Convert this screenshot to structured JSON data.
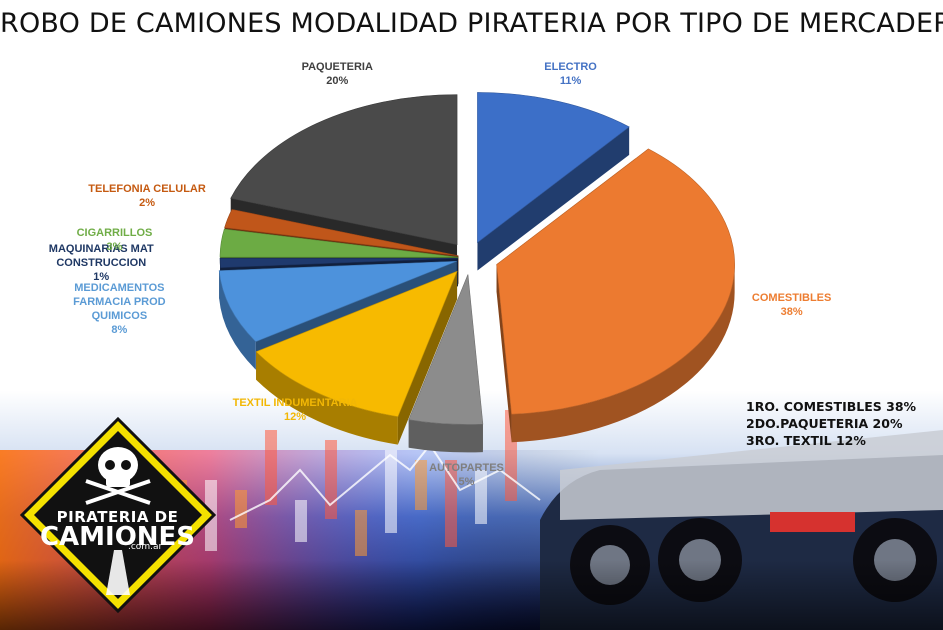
{
  "title": "ROBO DE CAMIONES MODALIDAD PIRATERIA POR TIPO DE MERCADERIA",
  "chart_data": {
    "type": "pie",
    "title": "ROBO DE CAMIONES MODALIDAD PIRATERIA POR TIPO DE MERCADERIA",
    "categories": [
      "ELECTRO",
      "COMESTIBLES",
      "AUTOPARTES",
      "TEXTIL INDUMENTARIA",
      "MEDICAMENTOS FARMACIA PROD QUIMICOS",
      "MAQUINARIAS MAT CONSTRUCCION",
      "CIGARRILLOS",
      "TELEFONIA CELULAR",
      "PAQUETERIA"
    ],
    "values": [
      11,
      38,
      5,
      12,
      8,
      1,
      3,
      2,
      20
    ],
    "labels": [
      {
        "lines": [
          "ELECTRO"
        ],
        "pct": "11%",
        "color": "#4472c4"
      },
      {
        "lines": [
          "COMESTIBLES"
        ],
        "pct": "38%",
        "color": "#ed7d31"
      },
      {
        "lines": [
          "AUTOPARTES"
        ],
        "pct": "5%",
        "color": "#7f7f7f"
      },
      {
        "lines": [
          "TEXTIL INDUMENTARIA"
        ],
        "pct": "12%",
        "color": "#f2b705"
      },
      {
        "lines": [
          "MEDICAMENTOS",
          "FARMACIA PROD",
          "QUIMICOS"
        ],
        "pct": "8%",
        "color": "#5b9bd5"
      },
      {
        "lines": [
          "MAQUINARIAS MAT",
          "CONSTRUCCION"
        ],
        "pct": "1%",
        "color": "#1f3864"
      },
      {
        "lines": [
          "CIGARRILLOS"
        ],
        "pct": "3%",
        "color": "#70ad47"
      },
      {
        "lines": [
          "TELEFONIA CELULAR"
        ],
        "pct": "2%",
        "color": "#c55a11"
      },
      {
        "lines": [
          "PAQUETERIA"
        ],
        "pct": "20%",
        "color": "#404040"
      }
    ],
    "colors": [
      "#3c6fc8",
      "#ec7a30",
      "#8c8c8c",
      "#f7ba00",
      "#4d92dc",
      "#1f3a6e",
      "#6cab44",
      "#c0561a",
      "#4a4a4a"
    ],
    "legend": "none",
    "grid": false
  },
  "ranking": [
    "1RO. COMESTIBLES 38%",
    "2DO.PAQUETERIA 20%",
    "3RO. TEXTIL 12%"
  ],
  "logo": {
    "line1": "PIRATERIA DE",
    "line2": "CAMIONES",
    "line3": ".com.ar"
  }
}
